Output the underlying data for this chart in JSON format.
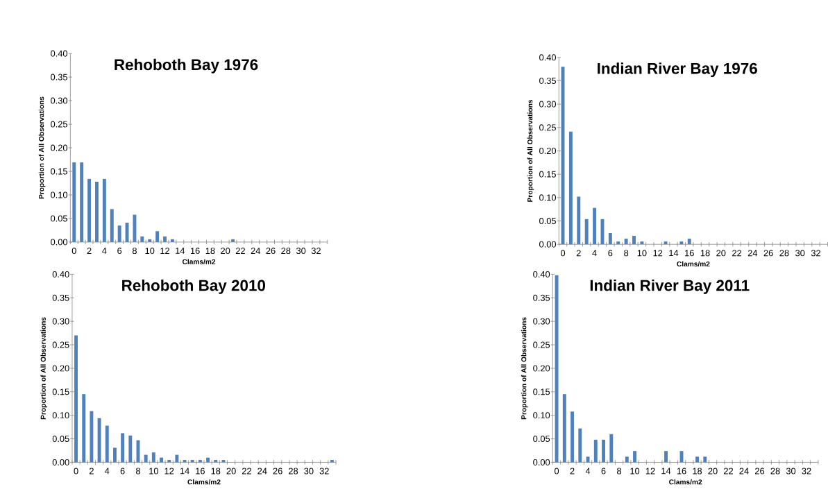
{
  "chart_data": [
    {
      "type": "bar",
      "title": "Rehoboth Bay 1976",
      "xlabel": "Clams/m2",
      "ylabel": "Proportion of All Observations",
      "color": "#4f81bd",
      "categories": [
        "0",
        null,
        "2",
        null,
        "4",
        null,
        "6",
        null,
        "8",
        null,
        "10",
        null,
        "12",
        null,
        "14",
        null,
        "16",
        null,
        "18",
        null,
        "20",
        null,
        "22",
        null,
        "24",
        null,
        "26",
        null,
        "28",
        null,
        "30",
        null,
        "32",
        null
      ],
      "values": [
        0.169,
        0.169,
        0.134,
        0.128,
        0.134,
        0.07,
        0.035,
        0.041,
        0.058,
        0.012,
        0.006,
        0.023,
        0.012,
        0.006,
        0,
        0,
        0,
        0,
        0,
        0,
        0,
        0.006,
        0,
        0,
        0,
        0,
        0,
        0,
        0,
        0,
        0,
        0,
        0,
        0
      ],
      "ylim": [
        0,
        0.4
      ],
      "yticks": [
        {
          "value": 0,
          "label": "0.00"
        },
        {
          "value": 0.05,
          "label": "0.05"
        },
        {
          "value": 0.1,
          "label": "0.10"
        },
        {
          "value": 0.15,
          "label": "0.15"
        },
        {
          "value": 0.2,
          "label": "0.20"
        },
        {
          "value": 0.25,
          "label": "0.25"
        },
        {
          "value": 0.3,
          "label": "0.30"
        },
        {
          "value": 0.35,
          "label": "0.35"
        },
        {
          "value": 0.4,
          "label": "0.40"
        }
      ]
    },
    {
      "type": "bar",
      "title": "Indian River Bay 1976",
      "xlabel": "Clams/m2",
      "ylabel": "Proportion of All Observations",
      "color": "#4f81bd",
      "categories": [
        "0",
        null,
        "2",
        null,
        "4",
        null,
        "6",
        null,
        "8",
        null,
        "10",
        null,
        "12",
        null,
        "14",
        null,
        "16",
        null,
        "18",
        null,
        "20",
        null,
        "22",
        null,
        "24",
        null,
        "26",
        null,
        "28",
        null,
        "30",
        null,
        "32",
        null
      ],
      "values": [
        0.38,
        0.241,
        0.102,
        0.054,
        0.078,
        0.054,
        0.024,
        0.006,
        0.012,
        0.018,
        0.006,
        0,
        0,
        0.006,
        0,
        0.006,
        0.012,
        0,
        0,
        0,
        0,
        0,
        0,
        0,
        0,
        0,
        0,
        0,
        0,
        0,
        0,
        0,
        0,
        0
      ],
      "ylim": [
        0,
        0.4
      ],
      "yticks": [
        {
          "value": 0,
          "label": "0.00"
        },
        {
          "value": 0.05,
          "label": "0.05"
        },
        {
          "value": 0.1,
          "label": "0.10"
        },
        {
          "value": 0.15,
          "label": "0.15"
        },
        {
          "value": 0.2,
          "label": "0.20"
        },
        {
          "value": 0.25,
          "label": "0.25"
        },
        {
          "value": 0.3,
          "label": "0.30"
        },
        {
          "value": 0.35,
          "label": "0.35"
        },
        {
          "value": 0.4,
          "label": "0.40"
        }
      ]
    },
    {
      "type": "bar",
      "title": "Rehoboth Bay 2010",
      "xlabel": "Clams/m2",
      "ylabel": "Proportion of All Observations",
      "color": "#4f81bd",
      "categories": [
        "0",
        null,
        "2",
        null,
        "4",
        null,
        "6",
        null,
        "8",
        null,
        "10",
        null,
        "12",
        null,
        "14",
        null,
        "16",
        null,
        "18",
        null,
        "20",
        null,
        "22",
        null,
        "24",
        null,
        "26",
        null,
        "28",
        null,
        "30",
        null,
        "32",
        null
      ],
      "values": [
        0.27,
        0.145,
        0.109,
        0.094,
        0.078,
        0.031,
        0.062,
        0.057,
        0.047,
        0.016,
        0.021,
        0.01,
        0.005,
        0.016,
        0.005,
        0.005,
        0.005,
        0.01,
        0.005,
        0.005,
        0,
        0,
        0,
        0,
        0,
        0,
        0,
        0,
        0,
        0,
        0,
        0,
        0,
        0.005
      ],
      "ylim": [
        0,
        0.4
      ],
      "yticks": [
        {
          "value": 0,
          "label": "0.00"
        },
        {
          "value": 0.05,
          "label": "0.05"
        },
        {
          "value": 0.1,
          "label": "0.10"
        },
        {
          "value": 0.15,
          "label": "0.15"
        },
        {
          "value": 0.2,
          "label": "0.20"
        },
        {
          "value": 0.25,
          "label": "0.25"
        },
        {
          "value": 0.3,
          "label": "0.30"
        },
        {
          "value": 0.35,
          "label": "0.35"
        },
        {
          "value": 0.4,
          "label": "0.40"
        }
      ]
    },
    {
      "type": "bar",
      "title": "Indian River Bay 2011",
      "xlabel": "Clams/m2",
      "ylabel": "Proportion of All Observations",
      "color": "#4f81bd",
      "categories": [
        "0",
        null,
        "2",
        null,
        "4",
        null,
        "6",
        null,
        "8",
        null,
        "10",
        null,
        "12",
        null,
        "14",
        null,
        "16",
        null,
        "18",
        null,
        "20",
        null,
        "22",
        null,
        "24",
        null,
        "26",
        null,
        "28",
        null,
        "30",
        null,
        "32",
        null
      ],
      "values": [
        0.398,
        0.145,
        0.108,
        0.072,
        0.012,
        0.048,
        0.048,
        0.06,
        0,
        0.012,
        0.024,
        0,
        0,
        0,
        0.024,
        0,
        0.024,
        0,
        0.012,
        0.012,
        0,
        0,
        0,
        0,
        0,
        0,
        0,
        0,
        0,
        0,
        0,
        0,
        0,
        0
      ],
      "ylim": [
        0,
        0.4
      ],
      "yticks": [
        {
          "value": 0,
          "label": "0.00"
        },
        {
          "value": 0.05,
          "label": "0.05"
        },
        {
          "value": 0.1,
          "label": "0.10"
        },
        {
          "value": 0.15,
          "label": "0.15"
        },
        {
          "value": 0.2,
          "label": "0.20"
        },
        {
          "value": 0.25,
          "label": "0.25"
        },
        {
          "value": 0.3,
          "label": "0.30"
        },
        {
          "value": 0.35,
          "label": "0.35"
        },
        {
          "value": 0.4,
          "label": "0.40"
        }
      ]
    }
  ]
}
